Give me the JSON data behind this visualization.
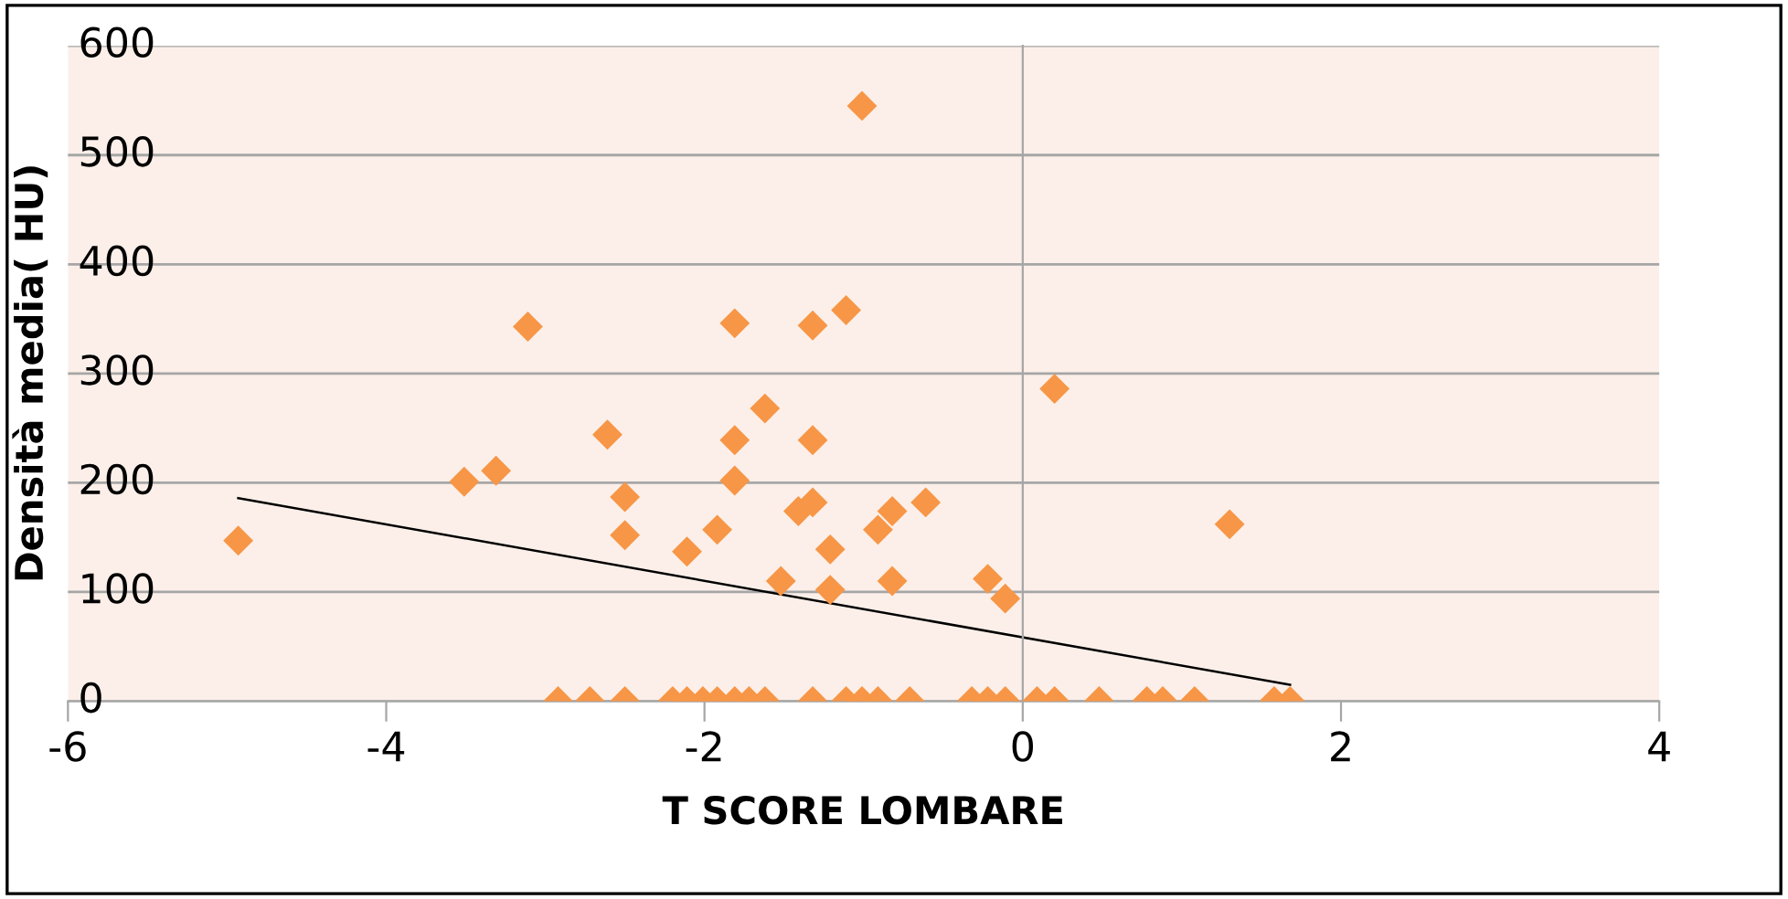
{
  "chart_data": {
    "type": "scatter",
    "xlabel": "T SCORE LOMBARE",
    "ylabel": "Densità media( HU)",
    "xlim": [
      -6,
      4
    ],
    "xticks": [
      -6,
      -4,
      -2,
      0,
      2,
      4
    ],
    "ylim": [
      0,
      600
    ],
    "yticks": [
      0,
      100,
      200,
      300,
      400,
      500,
      600
    ],
    "grid": "y",
    "marker": "diamond",
    "series": [
      {
        "color": "#f79646",
        "x": [
          -4.93,
          -3.11,
          -3.51,
          -3.31,
          -2.61,
          -2.5,
          -2.5,
          -2.11,
          -1.92,
          -1.81,
          -1.81,
          -1.81,
          -1.62,
          -1.52,
          -1.41,
          -1.32,
          -1.32,
          -1.32,
          -1.21,
          -1.21,
          -1.11,
          -1.01,
          -0.91,
          -0.82,
          -0.82,
          -0.61,
          -0.22,
          -0.11,
          0.2,
          1.3,
          -2.92,
          -2.72,
          -2.5,
          -2.2,
          -2.11,
          -2.01,
          -1.92,
          -1.81,
          -1.72,
          -1.62,
          -1.32,
          -1.11,
          -1.01,
          -0.91,
          -0.71,
          -0.32,
          -0.22,
          -0.11,
          0.09,
          0.2,
          0.48,
          0.78,
          0.88,
          1.08,
          1.58,
          1.68
        ],
        "values": [
          147,
          343,
          201,
          211,
          244,
          187,
          152,
          137,
          157,
          346,
          239,
          202,
          268,
          110,
          174,
          182,
          344,
          239,
          139,
          102,
          358,
          545,
          157,
          174,
          110,
          182,
          112,
          94,
          286,
          162,
          0,
          0,
          0,
          0,
          0,
          0,
          0,
          0,
          0,
          0,
          0,
          0,
          0,
          0,
          0,
          0,
          0,
          0,
          0,
          0,
          0,
          0,
          0,
          0,
          0,
          0
        ]
      },
      {
        "type": "line",
        "color": "#000000",
        "marker": "none",
        "x": [
          -4.93,
          1.68
        ],
        "values": [
          186,
          15
        ]
      }
    ]
  }
}
